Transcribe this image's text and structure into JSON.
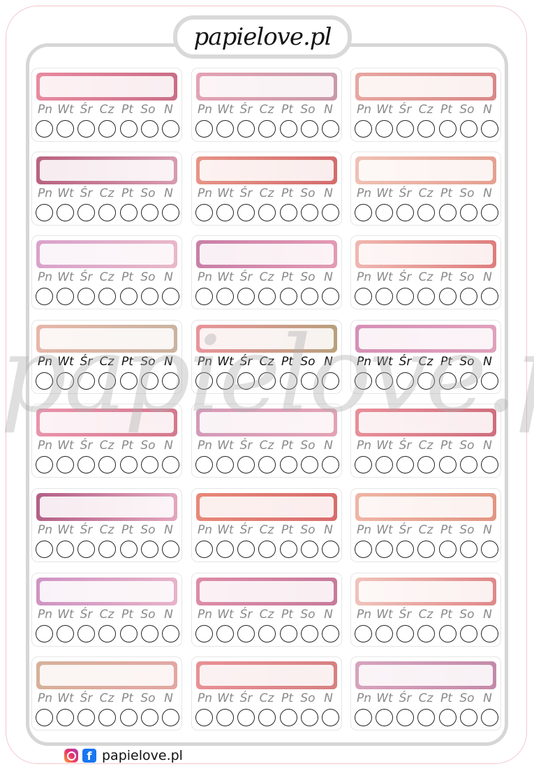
{
  "brand": {
    "logo_text": "papielove.pl",
    "watermark_text": "papielove.pl"
  },
  "days": [
    "Pn",
    "Wt",
    "Śr",
    "Cz",
    "Pt",
    "So",
    "N"
  ],
  "grid": {
    "columns": 3,
    "rows": 8,
    "circles_per_sticker": 7,
    "dark_label_row": 4
  },
  "sticker_colors": [
    [
      "#e88aa0",
      "#c96e86"
    ],
    [
      "#e3a3b4",
      "#c99aa9"
    ],
    [
      "#e7a7a0",
      "#d98787"
    ],
    [
      "#b9627f",
      "#d79bb0"
    ],
    [
      "#e79487",
      "#d46c6c"
    ],
    [
      "#efc1b4",
      "#e59f8f"
    ],
    [
      "#d9a2cb",
      "#e8b8c8"
    ],
    [
      "#c87fa8",
      "#e39ab3"
    ],
    [
      "#f0b7b0",
      "#de7d7d"
    ],
    [
      "#e7b7a9",
      "#c9b4a0"
    ],
    [
      "#e9949a",
      "#b8a07c"
    ],
    [
      "#d690b5",
      "#e0a1bc"
    ],
    [
      "#ea93ab",
      "#d4788d"
    ],
    [
      "#d49ab8",
      "#e3a2b4"
    ],
    [
      "#e88f99",
      "#cf6e7e"
    ],
    [
      "#b45f86",
      "#e3a6bd"
    ],
    [
      "#e88878",
      "#d86c6c"
    ],
    [
      "#f0b5a5",
      "#e29582"
    ],
    [
      "#cf94c4",
      "#e8b3c8"
    ],
    [
      "#dd8ca8",
      "#c77a9a"
    ],
    [
      "#f0c3bb",
      "#e08888"
    ],
    [
      "#d7b09a",
      "#e3a7a3"
    ],
    [
      "#e89095",
      "#d78080"
    ],
    [
      "#d7a3bd",
      "#c48aa8"
    ]
  ],
  "footer": {
    "site": "papielove.pl",
    "icons": [
      "instagram-icon",
      "facebook-icon"
    ]
  }
}
